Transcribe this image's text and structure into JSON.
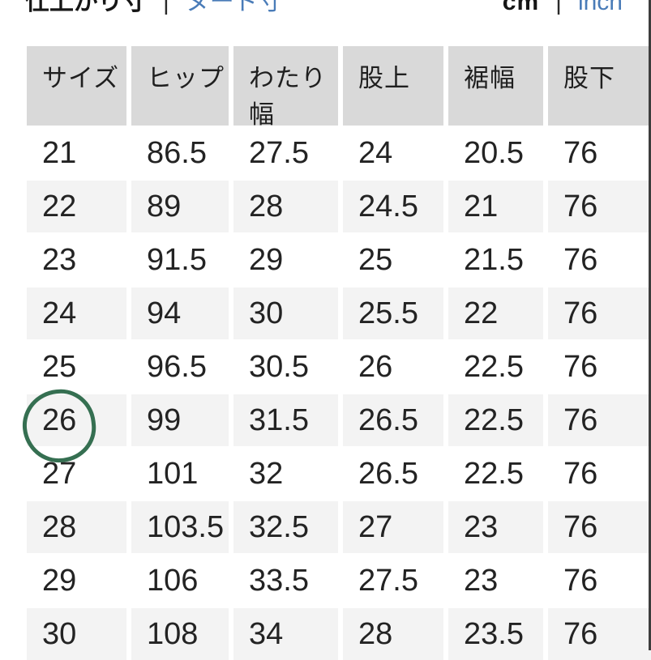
{
  "toggles": {
    "measure": {
      "active_label": "仕上がり寸",
      "separator": "|",
      "link_label": "ヌード寸"
    },
    "unit": {
      "active_label": "cm",
      "separator": "|",
      "link_label": "inch"
    }
  },
  "table": {
    "headers": [
      "サイズ",
      "ヒップ",
      "わたり幅",
      "股上",
      "裾幅",
      "股下"
    ],
    "rows": [
      [
        "21",
        "86.5",
        "27.5",
        "24",
        "20.5",
        "76"
      ],
      [
        "22",
        "89",
        "28",
        "24.5",
        "21",
        "76"
      ],
      [
        "23",
        "91.5",
        "29",
        "25",
        "21.5",
        "76"
      ],
      [
        "24",
        "94",
        "30",
        "25.5",
        "22",
        "76"
      ],
      [
        "25",
        "96.5",
        "30.5",
        "26",
        "22.5",
        "76"
      ],
      [
        "26",
        "99",
        "31.5",
        "26.5",
        "22.5",
        "76"
      ],
      [
        "27",
        "101",
        "32",
        "26.5",
        "22.5",
        "76"
      ],
      [
        "28",
        "103.5",
        "32.5",
        "27",
        "23",
        "76"
      ],
      [
        "29",
        "106",
        "33.5",
        "27.5",
        "23",
        "76"
      ],
      [
        "30",
        "108",
        "34",
        "28",
        "23.5",
        "76"
      ]
    ],
    "highlighted_size": "26"
  },
  "colors": {
    "header_bg": "#d9d9d9",
    "alt_row_bg": "#f3f3f3",
    "link_blue": "#4a7cb8",
    "highlight_green": "#356f51",
    "text": "#232323",
    "scroll_edge": "#3d3d3d"
  }
}
